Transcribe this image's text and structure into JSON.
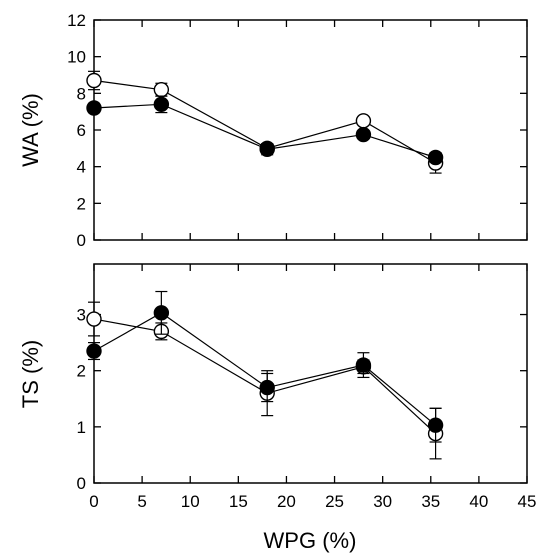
{
  "chart_data": [
    {
      "type": "scatter",
      "panel": "top",
      "xlabel": "",
      "ylabel": "WA (%)",
      "xlim": [
        0,
        45
      ],
      "ylim": [
        0,
        12
      ],
      "xticks": [
        0,
        5,
        10,
        15,
        20,
        25,
        30,
        35,
        40,
        45
      ],
      "yticks": [
        0,
        2,
        4,
        6,
        8,
        10,
        12
      ],
      "ytick_labels": [
        "0",
        "2",
        "4",
        "6",
        "8",
        "10",
        "12"
      ],
      "series": [
        {
          "marker": "open-circle",
          "x": [
            0,
            7,
            18,
            28,
            35.5
          ],
          "y": [
            8.7,
            8.2,
            5.0,
            6.5,
            4.2
          ],
          "err": [
            0.5,
            0.35,
            0.25,
            0.2,
            0.55
          ]
        },
        {
          "marker": "filled-circle",
          "x": [
            0,
            7,
            18,
            28,
            35.5
          ],
          "y": [
            7.2,
            7.4,
            4.95,
            5.75,
            4.5
          ],
          "err": [
            0.25,
            0.45,
            0.3,
            0.2,
            0.25
          ]
        }
      ]
    },
    {
      "type": "scatter",
      "panel": "bottom",
      "xlabel": "WPG (%)",
      "ylabel": "TS (%)",
      "xlim": [
        0,
        45
      ],
      "ylim": [
        0,
        3.9
      ],
      "xticks": [
        0,
        5,
        10,
        15,
        20,
        25,
        30,
        35,
        40,
        45
      ],
      "xtick_labels": [
        "0",
        "5",
        "10",
        "15",
        "20",
        "25",
        "30",
        "35",
        "40",
        "45"
      ],
      "yticks": [
        0,
        1,
        2,
        3
      ],
      "ytick_labels": [
        "0",
        "1",
        "2",
        "3"
      ],
      "series": [
        {
          "marker": "open-circle",
          "x": [
            0,
            7,
            18,
            28,
            35.5
          ],
          "y": [
            2.92,
            2.7,
            1.6,
            2.07,
            0.88
          ],
          "err": [
            0.3,
            0.15,
            0.4,
            0.12,
            0.45
          ]
        },
        {
          "marker": "filled-circle",
          "x": [
            0,
            7,
            18,
            28,
            35.5
          ],
          "y": [
            2.35,
            3.03,
            1.7,
            2.1,
            1.03
          ],
          "err": [
            0.15,
            0.38,
            0.25,
            0.22,
            0.3
          ]
        }
      ]
    }
  ]
}
